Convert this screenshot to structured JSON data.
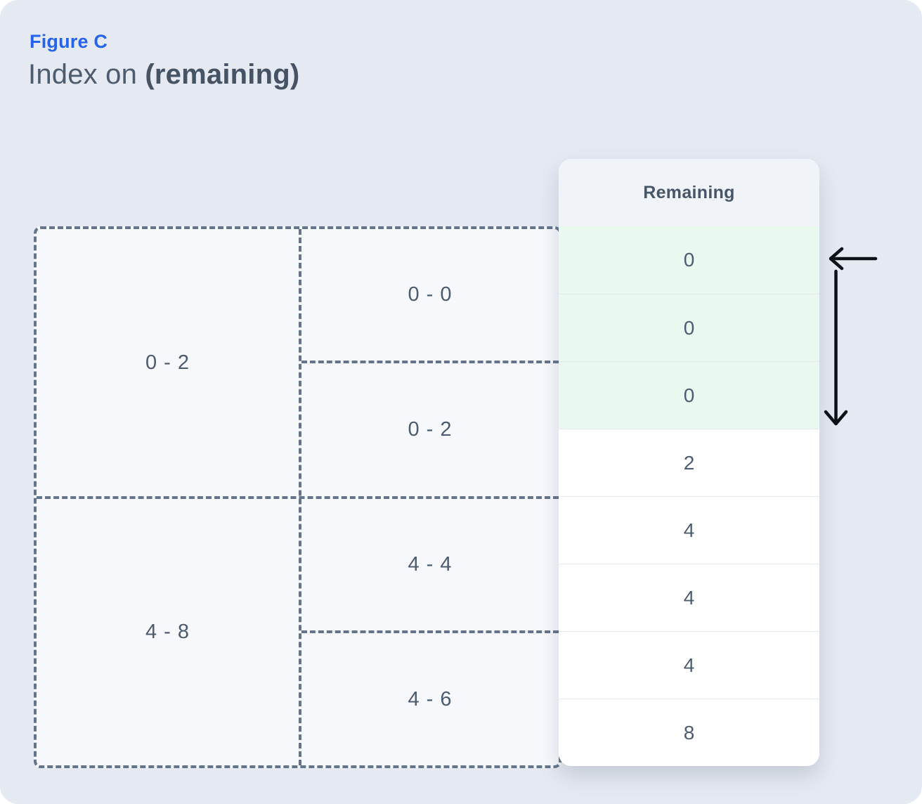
{
  "figure": {
    "label": "Figure C",
    "title_regular": "Index on",
    "title_bold": "(remaining)"
  },
  "index_tree": {
    "root_ranges": [
      {
        "label": "0 - 2"
      },
      {
        "label": "4 - 8"
      }
    ],
    "leaf_ranges": [
      {
        "label": "0 - 0"
      },
      {
        "label": "0 - 2"
      },
      {
        "label": "4 - 4"
      },
      {
        "label": "4 - 6"
      }
    ]
  },
  "table": {
    "header": "Remaining",
    "rows": [
      {
        "value": "0",
        "highlighted": true
      },
      {
        "value": "0",
        "highlighted": true
      },
      {
        "value": "0",
        "highlighted": true
      },
      {
        "value": "2",
        "highlighted": false
      },
      {
        "value": "4",
        "highlighted": false
      },
      {
        "value": "4",
        "highlighted": false
      },
      {
        "value": "4",
        "highlighted": false
      },
      {
        "value": "8",
        "highlighted": false
      }
    ]
  },
  "annotations": {
    "icons": [
      "arrow-left-icon",
      "arrow-down-icon"
    ]
  },
  "colors": {
    "accent_blue": "#2563eb",
    "highlight_green": "#e9f9ef",
    "page_background": "#e5e9f2",
    "box_fill": "#f6f8fc",
    "dashed_border": "#64748b",
    "table_header_fill": "#f0f4f9",
    "text_slate": "#4d5b6e",
    "arrow_black": "#0d1117"
  }
}
